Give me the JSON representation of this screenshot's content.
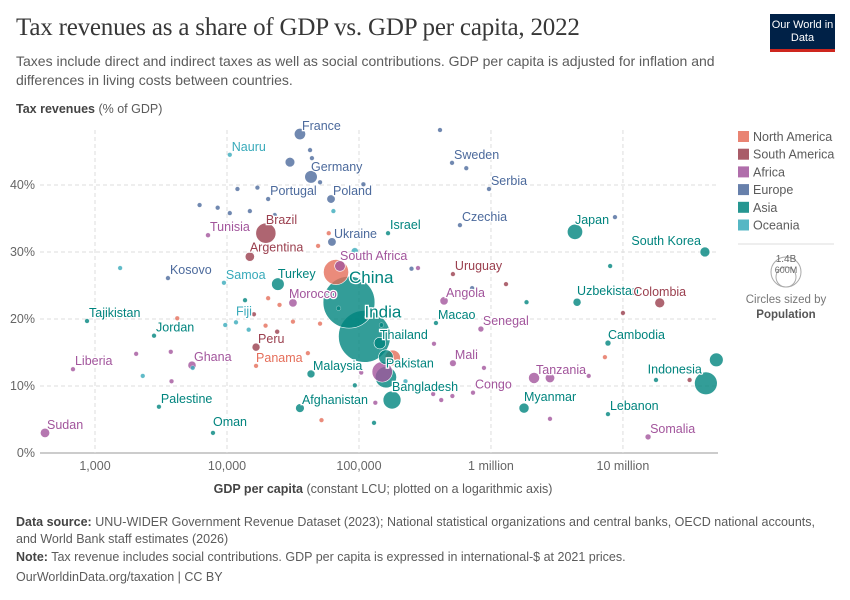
{
  "header": {
    "title": "Tax revenues as a share of GDP vs. GDP per capita, 2022",
    "subtitle": "Taxes include direct and indirect taxes as well as social contributions. GDP per capita is adjusted for inflation and differences in living costs between countries.",
    "logo": "Our World in Data"
  },
  "footer": {
    "source_label": "Data source:",
    "source": "UNU-WIDER Government Revenue Dataset (2023); National statistical organizations and central banks, OECD national accounts, and World Bank staff estimates (2026)",
    "note_label": "Note:",
    "note": "Tax revenue includes social contributions. GDP per capita is expressed in international-$ at 2021 prices.",
    "link": "OurWorldinData.org/taxation | CC BY"
  },
  "chart_data": {
    "type": "scatter",
    "title": "Tax revenues as a share of GDP vs. GDP per capita, 2022",
    "ylabel_bold": "Tax revenues",
    "ylabel_rest": " (% of GDP)",
    "xlabel_bold": "GDP per capita",
    "xlabel_rest": " (constant LCU; plotted on a logarithmic axis)",
    "x_scale": "log",
    "xlim": [
      383,
      52500000
    ],
    "ylim": [
      0,
      48.2
    ],
    "x_ticks": [
      {
        "v": 1000,
        "label": "1,000"
      },
      {
        "v": 10000,
        "label": "10,000"
      },
      {
        "v": 100000,
        "label": "100,000"
      },
      {
        "v": 1000000,
        "label": "1 million"
      },
      {
        "v": 10000000,
        "label": "10 million"
      }
    ],
    "y_ticks": [
      {
        "v": 0,
        "label": "0%"
      },
      {
        "v": 10,
        "label": "10%"
      },
      {
        "v": 20,
        "label": "20%"
      },
      {
        "v": 30,
        "label": "30%"
      },
      {
        "v": 40,
        "label": "40%"
      }
    ],
    "grid": true,
    "legend_position": "right",
    "regions": [
      {
        "name": "North America",
        "color": "#e56e5a"
      },
      {
        "name": "South America",
        "color": "#9a3f4e"
      },
      {
        "name": "Africa",
        "color": "#a2559c"
      },
      {
        "name": "Europe",
        "color": "#4c6a9c"
      },
      {
        "name": "Asia",
        "color": "#00847e"
      },
      {
        "name": "Oceania",
        "color": "#38aaba"
      }
    ],
    "size_legend": {
      "large": "1.4B",
      "small": "600M",
      "caption": "Circles sized by",
      "variable": "Population"
    },
    "points": [
      {
        "name": "France",
        "x": 35700,
        "y": 47.6,
        "region": "Europe",
        "pop": 68000000
      },
      {
        "name": "Nauru",
        "x": 10500,
        "y": 44.5,
        "region": "Oceania",
        "pop": 12000
      },
      {
        "name": "Germany",
        "x": 43300,
        "y": 41.2,
        "region": "Europe",
        "pop": 84000000
      },
      {
        "name": "Portugal",
        "x": 20500,
        "y": 37.9,
        "region": "Europe",
        "pop": 10000000
      },
      {
        "name": "Poland",
        "x": 61400,
        "y": 37.9,
        "region": "Europe",
        "pop": 38000000
      },
      {
        "name": "Brazil",
        "x": 19700,
        "y": 32.8,
        "region": "South America",
        "pop": 215000000
      },
      {
        "name": "Tunisia",
        "x": 7180,
        "y": 32.5,
        "region": "Africa",
        "pop": 12000000
      },
      {
        "name": "Ukraine",
        "x": 62400,
        "y": 31.5,
        "region": "Europe",
        "pop": 38000000
      },
      {
        "name": "Argentina",
        "x": 14900,
        "y": 29.3,
        "region": "South America",
        "pop": 46000000
      },
      {
        "name": "South Africa",
        "x": 71800,
        "y": 27.9,
        "region": "Africa",
        "pop": 60000000
      },
      {
        "name": "Kosovo",
        "x": 3570,
        "y": 26.1,
        "region": "Europe",
        "pop": 1700000
      },
      {
        "name": "Samoa",
        "x": 9480,
        "y": 25.4,
        "region": "Oceania",
        "pop": 220000
      },
      {
        "name": "Turkey",
        "x": 24300,
        "y": 25.2,
        "region": "Asia",
        "pop": 85000000
      },
      {
        "name": "",
        "x": 67000,
        "y": 27.0,
        "region": "North America",
        "pop": 335000000
      },
      {
        "name": "China",
        "x": 84000,
        "y": 22.5,
        "region": "Asia",
        "pop": 1420000000
      },
      {
        "name": "India",
        "x": 110000,
        "y": 17.4,
        "region": "Asia",
        "pop": 1425000000
      },
      {
        "name": "Morocco",
        "x": 31600,
        "y": 22.4,
        "region": "Africa",
        "pop": 37000000
      },
      {
        "name": "Tajikistan",
        "x": 870,
        "y": 19.7,
        "region": "Asia",
        "pop": 10000000
      },
      {
        "name": "Jordan",
        "x": 2800,
        "y": 17.5,
        "region": "Asia",
        "pop": 11000000
      },
      {
        "name": "Fiji",
        "x": 11700,
        "y": 19.5,
        "region": "Oceania",
        "pop": 930000
      },
      {
        "name": "Peru",
        "x": 16600,
        "y": 15.8,
        "region": "South America",
        "pop": 34000000
      },
      {
        "name": "Ghana",
        "x": 5430,
        "y": 13.1,
        "region": "Africa",
        "pop": 33000000
      },
      {
        "name": "Panama",
        "x": 16600,
        "y": 13.0,
        "region": "North America",
        "pop": 4400000
      },
      {
        "name": "Liberia",
        "x": 681,
        "y": 12.5,
        "region": "Africa",
        "pop": 5300000
      },
      {
        "name": "Malaysia",
        "x": 43300,
        "y": 11.8,
        "region": "Asia",
        "pop": 34000000
      },
      {
        "name": "Palestine",
        "x": 3050,
        "y": 6.9,
        "region": "Asia",
        "pop": 5000000
      },
      {
        "name": "Afghanistan",
        "x": 35700,
        "y": 6.7,
        "region": "Asia",
        "pop": 41000000
      },
      {
        "name": "Oman",
        "x": 7830,
        "y": 3.0,
        "region": "Asia",
        "pop": 4600000
      },
      {
        "name": "Sudan",
        "x": 418,
        "y": 3.0,
        "region": "Africa",
        "pop": 47000000
      },
      {
        "name": "Israel",
        "x": 166000,
        "y": 32.8,
        "region": "Asia",
        "pop": 9500000
      },
      {
        "name": "Sweden",
        "x": 507000,
        "y": 43.3,
        "region": "Europe",
        "pop": 10500000
      },
      {
        "name": "Serbia",
        "x": 966000,
        "y": 39.4,
        "region": "Europe",
        "pop": 6800000
      },
      {
        "name": "Czechia",
        "x": 582000,
        "y": 34.0,
        "region": "Europe",
        "pop": 10500000
      },
      {
        "name": "Japan",
        "x": 4330000,
        "y": 33.0,
        "region": "Asia",
        "pop": 124000000
      },
      {
        "name": "South Korea",
        "x": 41800000,
        "y": 30.0,
        "region": "Asia",
        "pop": 52000000
      },
      {
        "name": "Uruguay",
        "x": 515000,
        "y": 26.7,
        "region": "South America",
        "pop": 3400000
      },
      {
        "name": "Angola",
        "x": 441000,
        "y": 22.7,
        "region": "Africa",
        "pop": 36000000
      },
      {
        "name": "Uzbekistan",
        "x": 4490000,
        "y": 22.5,
        "region": "Asia",
        "pop": 35000000
      },
      {
        "name": "Colombia",
        "x": 19000000,
        "y": 22.4,
        "region": "South America",
        "pop": 52000000
      },
      {
        "name": "Macao",
        "x": 383000,
        "y": 19.4,
        "region": "Asia",
        "pop": 700000
      },
      {
        "name": "Senegal",
        "x": 839000,
        "y": 18.5,
        "region": "Africa",
        "pop": 17000000
      },
      {
        "name": "Thailand",
        "x": 144000,
        "y": 16.4,
        "region": "Asia",
        "pop": 72000000
      },
      {
        "name": "Cambodia",
        "x": 7700000,
        "y": 16.4,
        "region": "Asia",
        "pop": 17000000
      },
      {
        "name": "Pakistan",
        "x": 160000,
        "y": 11.3,
        "region": "Asia",
        "pop": 240000000
      },
      {
        "name": "Mali",
        "x": 515000,
        "y": 13.4,
        "region": "Africa",
        "pop": 22000000
      },
      {
        "name": "Tanzania",
        "x": 2120000,
        "y": 11.2,
        "region": "Africa",
        "pop": 65000000
      },
      {
        "name": "Indonesia",
        "x": 42500000,
        "y": 10.4,
        "region": "Asia",
        "pop": 275000000
      },
      {
        "name": "Bangladesh",
        "x": 178000,
        "y": 7.9,
        "region": "Asia",
        "pop": 170000000
      },
      {
        "name": "Congo",
        "x": 731000,
        "y": 9.0,
        "region": "Africa",
        "pop": 6000000
      },
      {
        "name": "Myanmar",
        "x": 1780000,
        "y": 6.7,
        "region": "Asia",
        "pop": 54000000
      },
      {
        "name": "Lebanon",
        "x": 7700000,
        "y": 5.8,
        "region": "Asia",
        "pop": 5500000
      },
      {
        "name": "Somalia",
        "x": 15500000,
        "y": 2.4,
        "region": "Africa",
        "pop": 17000000
      },
      {
        "name": "",
        "x": 411000,
        "y": 48.2,
        "region": "Europe",
        "pop": 5000000
      },
      {
        "name": "",
        "x": 42600,
        "y": 45.2,
        "region": "Europe",
        "pop": 6000000
      },
      {
        "name": "",
        "x": 30000,
        "y": 43.4,
        "region": "Europe",
        "pop": 50000000
      },
      {
        "name": "",
        "x": 44000,
        "y": 44.0,
        "region": "Europe",
        "pop": 9000000
      },
      {
        "name": "",
        "x": 50700,
        "y": 40.4,
        "region": "Europe",
        "pop": 5000000
      },
      {
        "name": "",
        "x": 108000,
        "y": 40.1,
        "region": "Europe",
        "pop": 4000000
      },
      {
        "name": "",
        "x": 17000,
        "y": 39.6,
        "region": "Europe",
        "pop": 4000000
      },
      {
        "name": "",
        "x": 12000,
        "y": 39.4,
        "region": "Europe",
        "pop": 3000000
      },
      {
        "name": "",
        "x": 6200,
        "y": 37.0,
        "region": "Europe",
        "pop": 3000000
      },
      {
        "name": "",
        "x": 8500,
        "y": 36.6,
        "region": "Europe",
        "pop": 3000000
      },
      {
        "name": "",
        "x": 10500,
        "y": 35.8,
        "region": "Europe",
        "pop": 3000000
      },
      {
        "name": "",
        "x": 14900,
        "y": 36.1,
        "region": "Europe",
        "pop": 4000000
      },
      {
        "name": "",
        "x": 23000,
        "y": 35.5,
        "region": "Europe",
        "pop": 5000000
      },
      {
        "name": "",
        "x": 31600,
        "y": 34.8,
        "region": "Europe",
        "pop": 5000000
      },
      {
        "name": "",
        "x": 650000,
        "y": 42.5,
        "region": "Europe",
        "pop": 5000000
      },
      {
        "name": "",
        "x": 8700000,
        "y": 35.2,
        "region": "Europe",
        "pop": 9600000
      },
      {
        "name": "",
        "x": 250000,
        "y": 27.5,
        "region": "Europe",
        "pop": 4000000
      },
      {
        "name": "",
        "x": 720000,
        "y": 24.6,
        "region": "Europe",
        "pop": 3000000
      },
      {
        "name": "",
        "x": 1550,
        "y": 27.6,
        "region": "Oceania",
        "pop": 9000000
      },
      {
        "name": "",
        "x": 9700,
        "y": 19.1,
        "region": "Oceania",
        "pop": 300000
      },
      {
        "name": "",
        "x": 14600,
        "y": 18.4,
        "region": "Oceania",
        "pop": 100000
      },
      {
        "name": "",
        "x": 2300,
        "y": 11.5,
        "region": "Oceania",
        "pop": 700000
      },
      {
        "name": "",
        "x": 5500,
        "y": 12.7,
        "region": "Oceania",
        "pop": 300000
      },
      {
        "name": "",
        "x": 93000,
        "y": 30.1,
        "region": "Oceania",
        "pop": 26000000
      },
      {
        "name": "",
        "x": 64000,
        "y": 36.1,
        "region": "Oceania",
        "pop": 5100000
      },
      {
        "name": "",
        "x": 225000,
        "y": 10.7,
        "region": "Oceania",
        "pop": 100000
      },
      {
        "name": "",
        "x": 4200,
        "y": 20.1,
        "region": "North America",
        "pop": 3000000
      },
      {
        "name": "",
        "x": 20500,
        "y": 23.1,
        "region": "North America",
        "pop": 3000000
      },
      {
        "name": "",
        "x": 25000,
        "y": 22.1,
        "region": "North America",
        "pop": 3000000
      },
      {
        "name": "",
        "x": 31600,
        "y": 19.6,
        "region": "North America",
        "pop": 3000000
      },
      {
        "name": "",
        "x": 50700,
        "y": 19.3,
        "region": "North America",
        "pop": 3000000
      },
      {
        "name": "",
        "x": 41000,
        "y": 14.9,
        "region": "North America",
        "pop": 3000000
      },
      {
        "name": "",
        "x": 52000,
        "y": 4.9,
        "region": "North America",
        "pop": 3000000
      },
      {
        "name": "",
        "x": 59000,
        "y": 32.8,
        "region": "North America",
        "pop": 3000000
      },
      {
        "name": "",
        "x": 49000,
        "y": 30.9,
        "region": "North America",
        "pop": 5000000
      },
      {
        "name": "",
        "x": 115000,
        "y": 20.3,
        "region": "North America",
        "pop": 10000000
      },
      {
        "name": "",
        "x": 19600,
        "y": 19.0,
        "region": "North America",
        "pop": 3000000
      },
      {
        "name": "",
        "x": 7300000,
        "y": 14.3,
        "region": "North America",
        "pop": 5000000
      },
      {
        "name": "",
        "x": 180000,
        "y": 14.2,
        "region": "North America",
        "pop": 128000000
      },
      {
        "name": "",
        "x": 16000,
        "y": 20.7,
        "region": "South America",
        "pop": 3000000
      },
      {
        "name": "",
        "x": 24000,
        "y": 18.1,
        "region": "South America",
        "pop": 12000000
      },
      {
        "name": "",
        "x": 1300000,
        "y": 25.2,
        "region": "South America",
        "pop": 3000000
      },
      {
        "name": "",
        "x": 10000000,
        "y": 20.9,
        "region": "South America",
        "pop": 3000000
      },
      {
        "name": "",
        "x": 32000000,
        "y": 10.9,
        "region": "South America",
        "pop": 3000000
      },
      {
        "name": "",
        "x": 3750,
        "y": 15.1,
        "region": "Africa",
        "pop": 5000000
      },
      {
        "name": "",
        "x": 2050,
        "y": 14.8,
        "region": "Africa",
        "pop": 5000000
      },
      {
        "name": "",
        "x": 3800,
        "y": 10.7,
        "region": "Africa",
        "pop": 5000000
      },
      {
        "name": "",
        "x": 133000,
        "y": 7.5,
        "region": "Africa",
        "pop": 5000000
      },
      {
        "name": "",
        "x": 370000,
        "y": 16.3,
        "region": "Africa",
        "pop": 5000000
      },
      {
        "name": "",
        "x": 885000,
        "y": 12.7,
        "region": "Africa",
        "pop": 10000000
      },
      {
        "name": "",
        "x": 5500000,
        "y": 11.5,
        "region": "Africa",
        "pop": 8000000
      },
      {
        "name": "",
        "x": 2800000,
        "y": 5.1,
        "region": "Africa",
        "pop": 5000000
      },
      {
        "name": "",
        "x": 2800000,
        "y": 11.2,
        "region": "Africa",
        "pop": 47000000
      },
      {
        "name": "",
        "x": 510000,
        "y": 8.5,
        "region": "Africa",
        "pop": 5000000
      },
      {
        "name": "",
        "x": 420000,
        "y": 7.9,
        "region": "Africa",
        "pop": 5000000
      },
      {
        "name": "",
        "x": 365000,
        "y": 8.8,
        "region": "Africa",
        "pop": 5000000
      },
      {
        "name": "",
        "x": 104000,
        "y": 12.0,
        "region": "Africa",
        "pop": 5000000
      },
      {
        "name": "",
        "x": 280000,
        "y": 27.6,
        "region": "Africa",
        "pop": 5000000
      },
      {
        "name": "",
        "x": 150000,
        "y": 12.1,
        "region": "Africa",
        "pop": 220000000
      },
      {
        "name": "",
        "x": 13700,
        "y": 22.8,
        "region": "Asia",
        "pop": 5000000
      },
      {
        "name": "",
        "x": 70000,
        "y": 21.6,
        "region": "Asia",
        "pop": 5000000
      },
      {
        "name": "",
        "x": 148000,
        "y": 19.1,
        "region": "Asia",
        "pop": 5000000
      },
      {
        "name": "",
        "x": 1860000,
        "y": 22.5,
        "region": "Asia",
        "pop": 3000000
      },
      {
        "name": "",
        "x": 8000000,
        "y": 27.9,
        "region": "Asia",
        "pop": 3000000
      },
      {
        "name": "",
        "x": 17800000,
        "y": 10.9,
        "region": "Asia",
        "pop": 3000000
      },
      {
        "name": "",
        "x": 51000000,
        "y": 13.9,
        "region": "Asia",
        "pop": 100000000
      },
      {
        "name": "",
        "x": 130000,
        "y": 4.5,
        "region": "Asia",
        "pop": 5000000
      },
      {
        "name": "",
        "x": 93000,
        "y": 10.1,
        "region": "Asia",
        "pop": 3000000
      },
      {
        "name": "",
        "x": 160000,
        "y": 14.3,
        "region": "Asia",
        "pop": 115000000
      }
    ]
  }
}
